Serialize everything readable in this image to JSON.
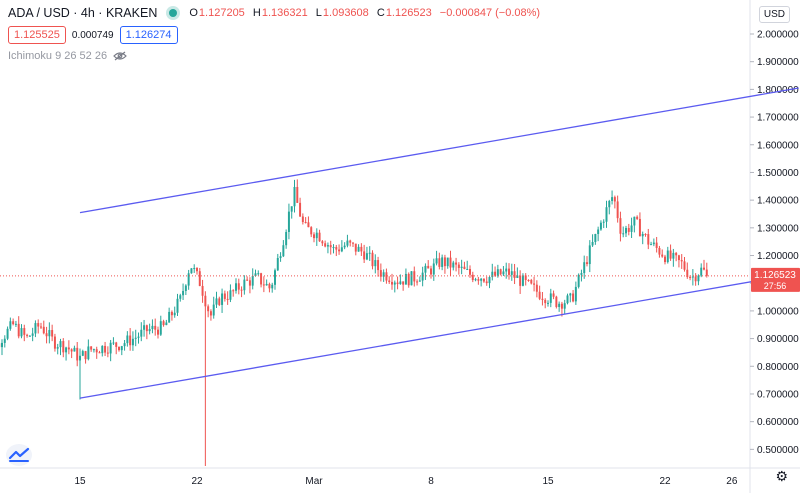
{
  "header": {
    "symbol": "ADA / USD · 4h · KRAKEN",
    "open_label": "O",
    "open": "1.127205",
    "high_label": "H",
    "high": "1.136321",
    "low_label": "L",
    "low": "1.093608",
    "close_label": "C",
    "close": "1.126523",
    "change": "−0.000847 (−0.08%)"
  },
  "quotes": {
    "sell": "1.125525",
    "spread": "0.000749",
    "buy": "1.126274"
  },
  "indicator": {
    "label": "Ichimoku 9 26 52 26"
  },
  "currency_button": "USD",
  "price_badge": {
    "value": "1.126523",
    "countdown": "27:56"
  },
  "colors": {
    "up": "#26a69a",
    "down": "#ef5350",
    "trendline": "#5b5bf0",
    "buy": "#2962ff"
  },
  "chart_data": {
    "type": "candlestick",
    "symbol": "ADA / USD",
    "interval": "4h",
    "exchange": "KRAKEN",
    "y_axis": {
      "side": "right",
      "min": 0.43,
      "max": 2.05,
      "ticks": [
        "2.000000",
        "1.900000",
        "1.800000",
        "1.700000",
        "1.600000",
        "1.500000",
        "1.400000",
        "1.300000",
        "1.200000",
        "1.100000",
        "1.000000",
        "0.900000",
        "0.800000",
        "0.700000",
        "0.600000",
        "0.500000"
      ]
    },
    "x_axis": {
      "tick_labels": [
        "15",
        "22",
        "Mar",
        "8",
        "15",
        "22",
        "26"
      ],
      "tick_days": [
        15,
        22,
        29,
        36,
        43,
        50,
        54
      ]
    },
    "last_price": 1.126523,
    "trendlines": [
      {
        "name": "upper channel",
        "from": {
          "day": 15,
          "price": 1.355
        },
        "to": {
          "day": 58,
          "price": 1.805
        }
      },
      {
        "name": "lower channel",
        "from": {
          "day": 15,
          "price": 0.685
        },
        "to": {
          "day": 58,
          "price": 1.135
        }
      }
    ],
    "price_path": [
      [
        9.0,
        0.78
      ],
      [
        10.0,
        0.88
      ],
      [
        11.0,
        0.95
      ],
      [
        11.8,
        0.9
      ],
      [
        12.6,
        0.95
      ],
      [
        13.4,
        0.89
      ],
      [
        14.2,
        0.87
      ],
      [
        15.0,
        0.83
      ],
      [
        15.6,
        0.86
      ],
      [
        16.6,
        0.87
      ],
      [
        17.4,
        0.88
      ],
      [
        18.2,
        0.9
      ],
      [
        19.0,
        0.93
      ],
      [
        20.0,
        0.94
      ],
      [
        21.0,
        1.04
      ],
      [
        21.6,
        1.17
      ],
      [
        22.2,
        1.1
      ],
      [
        22.8,
        0.98
      ],
      [
        23.4,
        1.05
      ],
      [
        24.0,
        1.06
      ],
      [
        24.8,
        1.1
      ],
      [
        25.6,
        1.12
      ],
      [
        26.4,
        1.08
      ],
      [
        27.2,
        1.27
      ],
      [
        27.8,
        1.43
      ],
      [
        28.4,
        1.3
      ],
      [
        29.2,
        1.28
      ],
      [
        30.2,
        1.22
      ],
      [
        31.0,
        1.24
      ],
      [
        32.0,
        1.21
      ],
      [
        33.0,
        1.14
      ],
      [
        34.0,
        1.11
      ],
      [
        35.0,
        1.12
      ],
      [
        36.0,
        1.15
      ],
      [
        36.6,
        1.18
      ],
      [
        37.4,
        1.16
      ],
      [
        38.4,
        1.13
      ],
      [
        39.4,
        1.12
      ],
      [
        40.6,
        1.14
      ],
      [
        41.6,
        1.1
      ],
      [
        42.6,
        1.06
      ],
      [
        43.6,
        1.03
      ],
      [
        44.4,
        1.04
      ],
      [
        45.4,
        1.2
      ],
      [
        46.4,
        1.35
      ],
      [
        46.9,
        1.42
      ],
      [
        47.4,
        1.28
      ],
      [
        48.2,
        1.32
      ],
      [
        49.0,
        1.25
      ],
      [
        50.0,
        1.2
      ],
      [
        51.0,
        1.17
      ],
      [
        51.6,
        1.12
      ],
      [
        52.2,
        1.15
      ],
      [
        52.6,
        1.126
      ]
    ],
    "spikes": [
      {
        "day": 22.5,
        "price": 0.44,
        "note": "long lower wick"
      },
      {
        "day": 15.0,
        "price": 0.68,
        "note": "lower wick"
      }
    ]
  }
}
